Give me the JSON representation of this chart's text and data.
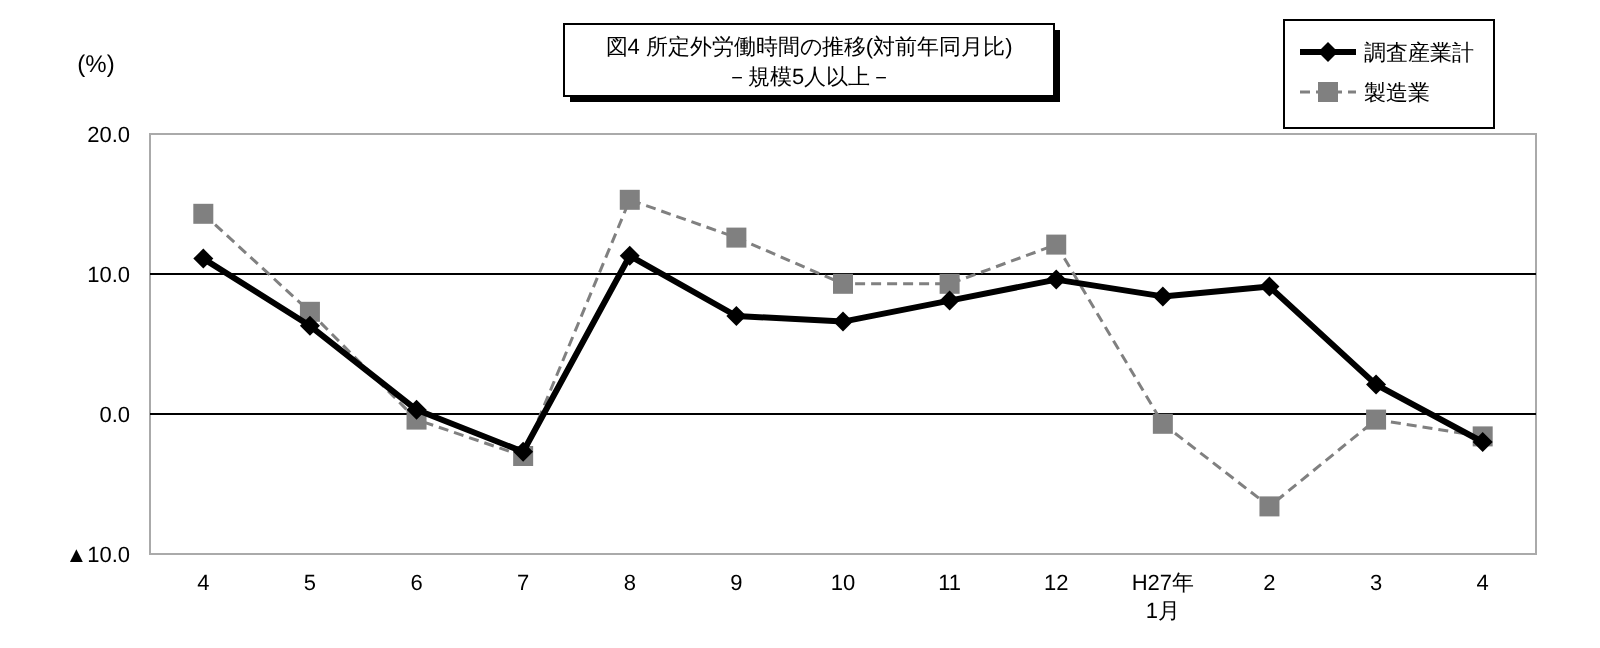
{
  "chart_data": {
    "type": "line",
    "title": "図4  所定外労働時間の推移(対前年同月比)",
    "subtitle": "－規模5人以上－",
    "ylabel": "(%)",
    "categories": [
      "4",
      "5",
      "6",
      "7",
      "8",
      "9",
      "10",
      "11",
      "12",
      "H27年\n1月",
      "2",
      "3",
      "4"
    ],
    "series": [
      {
        "name": "調査産業計",
        "color": "#000000",
        "marker": "diamond",
        "line_style": "solid",
        "values": [
          11.1,
          6.3,
          0.3,
          -2.7,
          11.3,
          7.0,
          6.6,
          8.1,
          9.6,
          8.4,
          9.1,
          2.1,
          -2.0
        ]
      },
      {
        "name": "製造業",
        "color": "#808080",
        "marker": "square",
        "line_style": "dashed",
        "values": [
          14.3,
          7.3,
          -0.4,
          -3.0,
          15.3,
          12.6,
          9.3,
          9.3,
          12.1,
          -0.7,
          -6.6,
          -0.4,
          -1.6
        ]
      }
    ],
    "ylim": [
      -10,
      20
    ],
    "yticks": [
      {
        "value": -10,
        "label": "▲10.0"
      },
      {
        "value": 0,
        "label": "0.0"
      },
      {
        "value": 10,
        "label": "10.0"
      },
      {
        "value": 20,
        "label": "20.0"
      }
    ],
    "grid": "y",
    "legend": "top right"
  }
}
